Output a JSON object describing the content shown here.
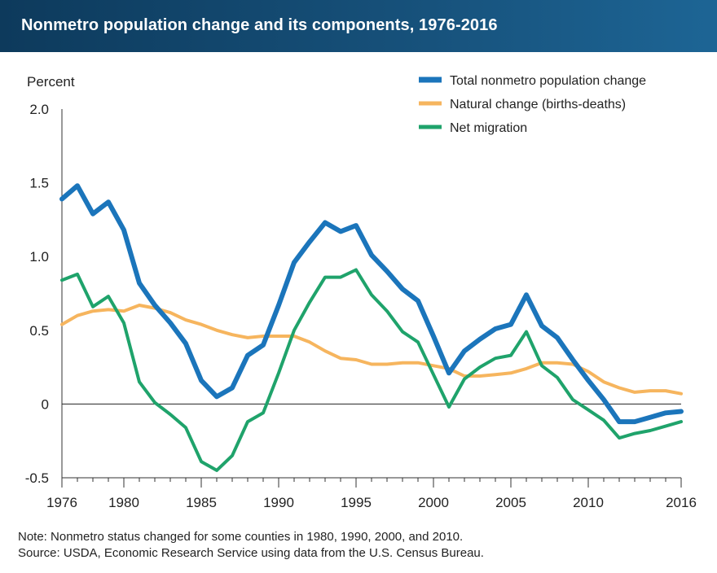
{
  "header": {
    "title": "Nonmetro population change and its components, 1976-2016"
  },
  "footer": {
    "note": "Note: Nonmetro status changed for some counties in 1980, 1990, 2000, and 2010.",
    "source": "Source: USDA, Economic Research Service using data from the U.S. Census Bureau."
  },
  "chart_data": {
    "type": "line",
    "title": "Nonmetro population change and its components, 1976-2016",
    "ylabel": "Percent",
    "xlabel": "",
    "xlim": [
      1976,
      2016
    ],
    "ylim": [
      -0.5,
      2.0
    ],
    "x_ticks": [
      1976,
      1980,
      1985,
      1990,
      1995,
      2000,
      2005,
      2010,
      2016
    ],
    "x_tick_labels": [
      "1976",
      "1980",
      "1985",
      "1990",
      "1995",
      "2000",
      "2005",
      "2010",
      "2016"
    ],
    "y_ticks": [
      -0.5,
      0,
      0.5,
      1.0,
      1.5,
      2.0
    ],
    "y_tick_labels": [
      "-0.5",
      "0",
      "0.5",
      "1.0",
      "1.5",
      "2.0"
    ],
    "zero_line": true,
    "legend_position": "top-right",
    "x": [
      1976,
      1977,
      1978,
      1979,
      1980,
      1981,
      1982,
      1983,
      1984,
      1985,
      1986,
      1987,
      1988,
      1989,
      1990,
      1991,
      1992,
      1993,
      1994,
      1995,
      1996,
      1997,
      1998,
      1999,
      2000,
      2001,
      2002,
      2003,
      2004,
      2005,
      2006,
      2007,
      2008,
      2009,
      2010,
      2011,
      2012,
      2013,
      2014,
      2015,
      2016
    ],
    "series": [
      {
        "name": "Total nonmetro population change",
        "color": "#1b75bb",
        "width": 6,
        "values": [
          1.39,
          1.48,
          1.29,
          1.37,
          1.18,
          0.82,
          0.67,
          0.55,
          0.41,
          0.16,
          0.05,
          0.11,
          0.33,
          0.4,
          0.67,
          0.96,
          1.1,
          1.23,
          1.17,
          1.21,
          1.01,
          0.9,
          0.78,
          0.7,
          0.46,
          0.21,
          0.36,
          0.44,
          0.51,
          0.54,
          0.74,
          0.53,
          0.45,
          0.3,
          0.16,
          0.03,
          -0.12,
          -0.12,
          -0.09,
          -0.06,
          -0.05
        ]
      },
      {
        "name": "Natural change (births-deaths)",
        "color": "#f6b55e",
        "width": 4,
        "values": [
          0.54,
          0.6,
          0.63,
          0.64,
          0.63,
          0.67,
          0.65,
          0.62,
          0.57,
          0.54,
          0.5,
          0.47,
          0.45,
          0.46,
          0.46,
          0.46,
          0.42,
          0.36,
          0.31,
          0.3,
          0.27,
          0.27,
          0.28,
          0.28,
          0.26,
          0.24,
          0.19,
          0.19,
          0.2,
          0.21,
          0.24,
          0.28,
          0.28,
          0.27,
          0.22,
          0.15,
          0.11,
          0.08,
          0.09,
          0.09,
          0.07
        ]
      },
      {
        "name": "Net migration",
        "color": "#1fa36b",
        "width": 4,
        "values": [
          0.84,
          0.88,
          0.66,
          0.73,
          0.55,
          0.15,
          0.01,
          -0.07,
          -0.16,
          -0.39,
          -0.45,
          -0.35,
          -0.12,
          -0.06,
          0.21,
          0.5,
          0.69,
          0.86,
          0.86,
          0.91,
          0.74,
          0.63,
          0.49,
          0.42,
          0.2,
          -0.02,
          0.17,
          0.25,
          0.31,
          0.33,
          0.49,
          0.26,
          0.18,
          0.03,
          -0.04,
          -0.11,
          -0.23,
          -0.2,
          -0.18,
          -0.15,
          -0.12
        ]
      }
    ]
  }
}
